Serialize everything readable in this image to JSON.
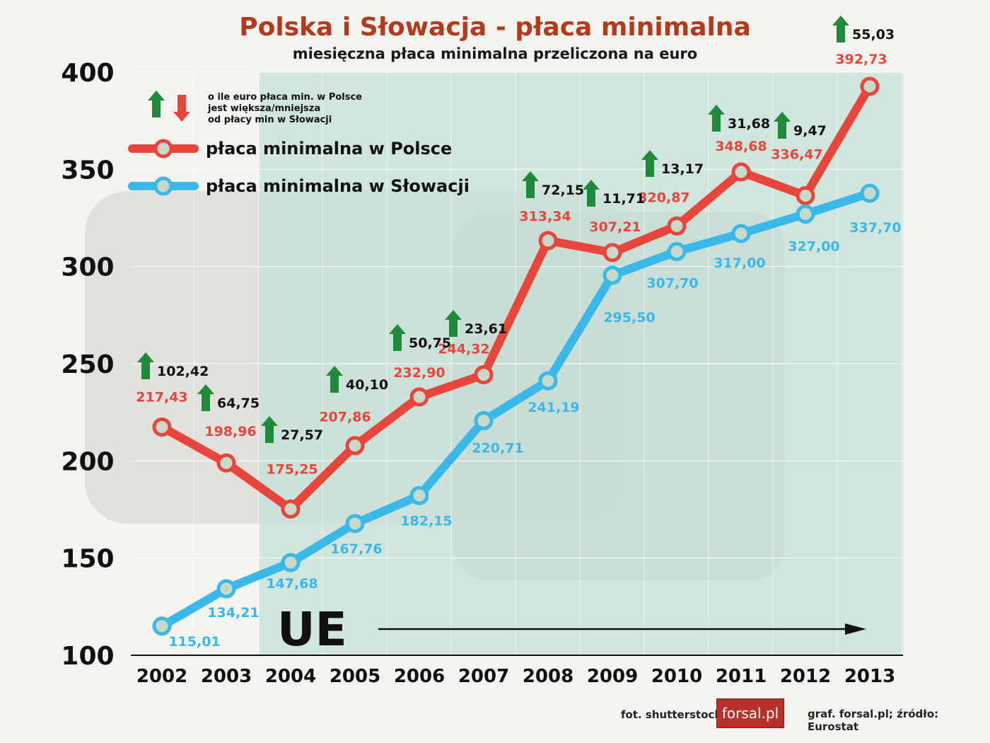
{
  "header": {
    "title": "Polska i Słowacja - płaca minimalna",
    "subtitle": "miesięczna płaca minimalna przeliczona na euro"
  },
  "footer": {
    "photo_credit": "fot. shutterstock",
    "logo_text": "forsal.pl",
    "source": "graf. forsal.pl;  źródło: Eurostat"
  },
  "colors": {
    "poland": "#e8453c",
    "slovakia": "#3ab8ea",
    "eu_band": "#c4e0d6",
    "arrow_up": "#1f8a3a",
    "arrow_down": "#e8453c"
  },
  "chart_data": {
    "type": "line",
    "x": [
      2002,
      2003,
      2004,
      2005,
      2006,
      2007,
      2008,
      2009,
      2010,
      2011,
      2012,
      2013
    ],
    "ylim": [
      100,
      400
    ],
    "yticks": [
      100,
      150,
      200,
      250,
      300,
      350,
      400
    ],
    "grid": true,
    "legend_placement": "top-left",
    "legend_note": "o ile euro płaca min. w Polsce jest większa/mniejsza od płacy min w Słowacji",
    "series": [
      {
        "name": "płaca minimalna w Polsce",
        "values": [
          217.43,
          198.96,
          175.25,
          207.86,
          232.9,
          244.32,
          313.34,
          307.21,
          320.87,
          348.68,
          336.47,
          392.73
        ],
        "labels": [
          "217,43",
          "198,96",
          "175,25",
          "207,86",
          "232,90",
          "244,32",
          "313,34",
          "307,21",
          "320,87",
          "348,68",
          "336,47",
          "392,73"
        ]
      },
      {
        "name": "płaca minimalna w Słowacji",
        "values": [
          115.01,
          134.21,
          147.68,
          167.76,
          182.15,
          220.71,
          241.19,
          295.5,
          307.7,
          317.0,
          327.0,
          337.7
        ],
        "labels": [
          "115,01",
          "134,21",
          "147,68",
          "167,76",
          "182,15",
          "220,71",
          "241,19",
          "295,50",
          "307,70",
          "317,00",
          "327,00",
          "337,70"
        ]
      }
    ],
    "differences": {
      "values": [
        102.42,
        64.75,
        27.57,
        40.1,
        50.75,
        23.61,
        72.15,
        11.71,
        13.17,
        31.68,
        9.47,
        55.03
      ],
      "labels": [
        "102,42",
        "64,75",
        "27,57",
        "40,10",
        "50,75",
        "23,61",
        "72,15",
        "11,71",
        "13,17",
        "31,68",
        "9,47",
        "55,03"
      ]
    },
    "annotation": {
      "text": "UE",
      "from_year": 2004
    }
  }
}
